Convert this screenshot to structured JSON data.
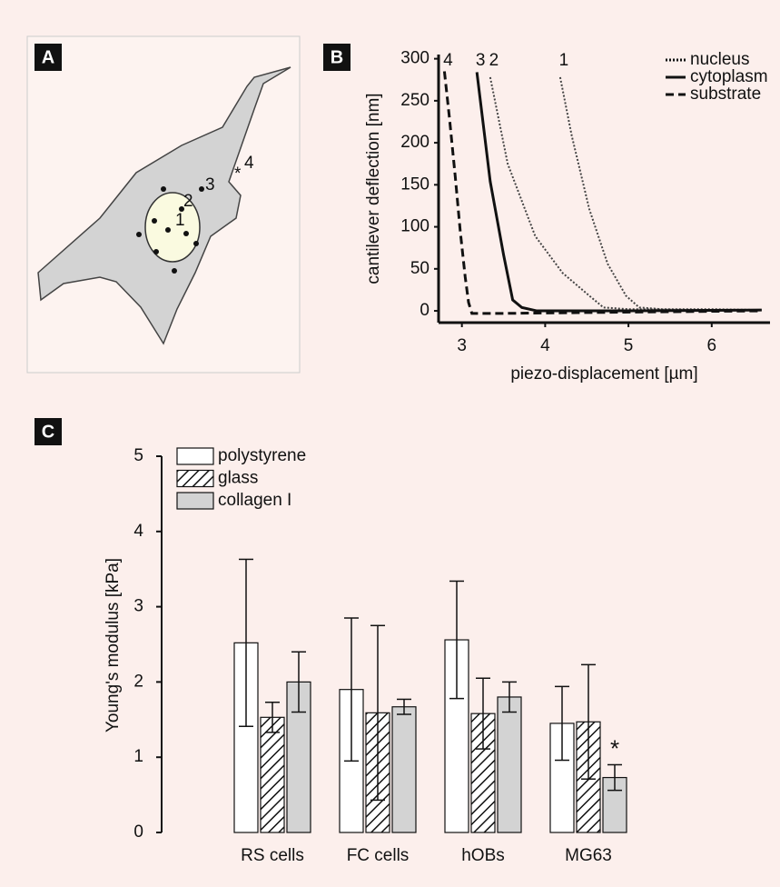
{
  "diagram": {
    "panel": "A",
    "points": [
      "1",
      "2",
      "3",
      "4"
    ],
    "marker": "*"
  },
  "chart_data": [
    {
      "panel": "B",
      "type": "line",
      "xlabel": "piezo-displacement [µm]",
      "ylabel": "cantilever deflection [nm]",
      "xlim": [
        2.72,
        6.7
      ],
      "ylim": [
        -14,
        305
      ],
      "xticks": [
        3,
        4,
        5,
        6
      ],
      "yticks": [
        0,
        50,
        100,
        150,
        200,
        250,
        300
      ],
      "legend_position": "upper right",
      "legend": [
        {
          "name": "nucleus",
          "style": "dotted"
        },
        {
          "name": "cytoplasm",
          "style": "solid"
        },
        {
          "name": "substrate",
          "style": "dashed"
        }
      ],
      "series": [
        {
          "label": "1",
          "style": "dotted",
          "color": "#444444",
          "x": [
            4.18,
            4.32,
            4.53,
            4.75,
            4.97,
            5.13,
            5.4,
            6.0,
            6.6
          ],
          "values": [
            278,
            208,
            121,
            56,
            18,
            4,
            2,
            2,
            1
          ]
        },
        {
          "label": "2",
          "style": "dotted",
          "color": "#444444",
          "x": [
            3.34,
            3.55,
            3.88,
            4.21,
            4.53,
            4.7,
            5.0,
            6.0,
            6.6
          ],
          "values": [
            278,
            175,
            89,
            45,
            18,
            4,
            2,
            1,
            1
          ]
        },
        {
          "label": "3",
          "style": "solid",
          "color": "#111111",
          "x": [
            3.18,
            3.34,
            3.5,
            3.61,
            3.72,
            3.9,
            5.0,
            6.6
          ],
          "values": [
            284,
            154,
            67,
            13,
            4,
            0,
            0,
            1
          ]
        },
        {
          "label": "4",
          "style": "dashed",
          "color": "#111111",
          "x": [
            2.79,
            2.85,
            2.92,
            2.98,
            3.04,
            3.08,
            3.12,
            3.5,
            4.5,
            5.5,
            6.6
          ],
          "values": [
            285,
            230,
            160,
            95,
            40,
            10,
            -3,
            -3,
            -2,
            -1,
            0
          ]
        }
      ]
    },
    {
      "panel": "C",
      "type": "bar",
      "ylabel": "Young's modulus [kPa]",
      "categories": [
        "RS cells",
        "FC cells",
        "hOBs",
        "MG63"
      ],
      "ylim": [
        0,
        5
      ],
      "yticks": [
        0,
        1,
        2,
        3,
        4,
        5
      ],
      "legend_position": "upper left",
      "series": [
        {
          "name": "polystyrene",
          "color": "#ffffff",
          "hatch": false,
          "values": [
            2.52,
            1.9,
            2.56,
            1.45
          ],
          "errors": [
            1.11,
            0.95,
            0.78,
            0.49
          ]
        },
        {
          "name": "glass",
          "color": "#ffffff",
          "hatch": true,
          "values": [
            1.53,
            1.59,
            1.58,
            1.47
          ],
          "errors": [
            0.2,
            1.16,
            0.47,
            0.76
          ]
        },
        {
          "name": "collagen I",
          "color": "#d3d3d3",
          "hatch": false,
          "values": [
            2.0,
            1.67,
            1.8,
            0.73
          ],
          "errors": [
            0.4,
            0.1,
            0.2,
            0.17
          ]
        }
      ],
      "annotations": [
        {
          "text": "*",
          "x": "MG63",
          "series": "collagen I"
        }
      ]
    }
  ]
}
